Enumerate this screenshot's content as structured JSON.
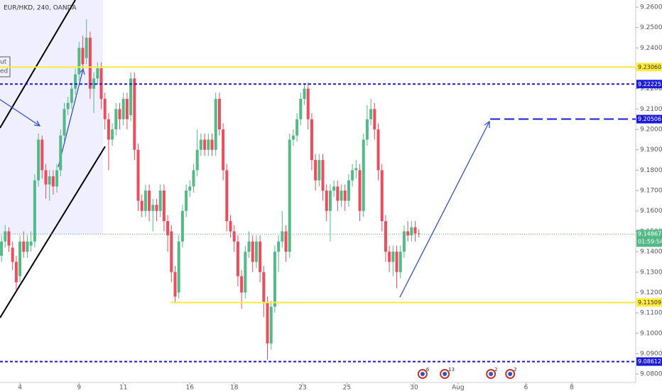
{
  "chart_data": {
    "type": "candlestick",
    "title": "EUR/HKD, 240, OANDA",
    "note_fragment": [
      "ut",
      "ed"
    ],
    "up_color": "#53b987",
    "down_color": "#eb4d5c",
    "ylim": [
      9.0769,
      9.2635
    ],
    "yticks": [
      {
        "value": 9.26,
        "label": "9.26000"
      },
      {
        "value": 9.25,
        "label": "9.25000"
      },
      {
        "value": 9.24,
        "label": "9.24000"
      },
      {
        "value": 9.23,
        "label": "9.23000"
      },
      {
        "value": 9.22,
        "label": "9.22000"
      },
      {
        "value": 9.21,
        "label": "9.21000"
      },
      {
        "value": 9.2,
        "label": "9.20000"
      },
      {
        "value": 9.19,
        "label": "9.19000"
      },
      {
        "value": 9.18,
        "label": "9.18000"
      },
      {
        "value": 9.17,
        "label": "9.17000"
      },
      {
        "value": 9.16,
        "label": "9.16000"
      },
      {
        "value": 9.15,
        "label": "9.15000"
      },
      {
        "value": 9.14,
        "label": "9.14000"
      },
      {
        "value": 9.13,
        "label": "9.13000"
      },
      {
        "value": 9.12,
        "label": "9.12000"
      },
      {
        "value": 9.11,
        "label": "9.11000"
      },
      {
        "value": 9.1,
        "label": "9.10000"
      },
      {
        "value": 9.09,
        "label": "9.09000"
      },
      {
        "value": 9.08,
        "label": "9.08000"
      }
    ],
    "xlim": [
      -0.4,
      171.7
    ],
    "xticks": [
      {
        "value": 5,
        "label": "4"
      },
      {
        "value": 21,
        "label": "9"
      },
      {
        "value": 33,
        "label": "11"
      },
      {
        "value": 51,
        "label": "16"
      },
      {
        "value": 63,
        "label": "18"
      },
      {
        "value": 81.5,
        "label": "23"
      },
      {
        "value": 93.5,
        "label": "25"
      },
      {
        "value": 111.7,
        "label": "30"
      },
      {
        "value": 123.6,
        "label": "Aug"
      },
      {
        "value": 142,
        "label": "6"
      },
      {
        "value": 154.4,
        "label": "8"
      }
    ],
    "ohlc": [
      [
        9.138,
        9.148,
        9.135,
        9.145
      ],
      [
        9.145,
        9.153,
        9.142,
        9.15
      ],
      [
        9.15,
        9.152,
        9.14,
        9.143
      ],
      [
        9.142,
        9.145,
        9.131,
        9.135
      ],
      [
        9.135,
        9.138,
        9.121,
        9.125
      ],
      [
        9.128,
        9.148,
        9.125,
        9.145
      ],
      [
        9.145,
        9.15,
        9.137,
        9.14
      ],
      [
        9.14,
        9.148,
        9.137,
        9.145
      ],
      [
        9.143,
        9.15,
        9.14,
        9.145
      ],
      [
        9.145,
        9.178,
        9.142,
        9.175
      ],
      [
        9.175,
        9.198,
        9.172,
        9.195
      ],
      [
        9.195,
        9.197,
        9.176,
        9.18
      ],
      [
        9.18,
        9.183,
        9.166,
        9.173
      ],
      [
        9.173,
        9.18,
        9.165,
        9.177
      ],
      [
        9.177,
        9.18,
        9.168,
        9.172
      ],
      [
        9.172,
        9.183,
        9.169,
        9.18
      ],
      [
        9.18,
        9.2,
        9.177,
        9.197
      ],
      [
        9.197,
        9.213,
        9.194,
        9.21
      ],
      [
        9.21,
        9.216,
        9.207,
        9.213
      ],
      [
        9.213,
        9.223,
        9.21,
        9.22
      ],
      [
        9.22,
        9.23,
        9.217,
        9.227
      ],
      [
        9.227,
        9.243,
        9.224,
        9.24
      ],
      [
        9.24,
        9.246,
        9.229,
        9.232
      ],
      [
        9.235,
        9.254,
        9.232,
        9.245
      ],
      [
        9.245,
        9.248,
        9.215,
        9.22
      ],
      [
        9.22,
        9.228,
        9.208,
        9.225
      ],
      [
        9.225,
        9.233,
        9.222,
        9.23
      ],
      [
        9.23,
        9.233,
        9.21,
        9.215
      ],
      [
        9.215,
        9.218,
        9.2,
        9.205
      ],
      [
        9.205,
        9.208,
        9.18,
        9.195
      ],
      [
        9.195,
        9.203,
        9.192,
        9.2
      ],
      [
        9.2,
        9.213,
        9.197,
        9.21
      ],
      [
        9.21,
        9.213,
        9.2,
        9.205
      ],
      [
        9.205,
        9.218,
        9.202,
        9.215
      ],
      [
        9.215,
        9.218,
        9.2,
        9.205
      ],
      [
        9.207,
        9.228,
        9.204,
        9.225
      ],
      [
        9.225,
        9.228,
        9.185,
        9.19
      ],
      [
        9.19,
        9.193,
        9.16,
        9.165
      ],
      [
        9.165,
        9.168,
        9.157,
        9.16
      ],
      [
        9.16,
        9.173,
        9.157,
        9.17
      ],
      [
        9.17,
        9.173,
        9.155,
        9.16
      ],
      [
        9.16,
        9.166,
        9.15,
        9.163
      ],
      [
        9.163,
        9.166,
        9.155,
        9.16
      ],
      [
        9.16,
        9.173,
        9.157,
        9.17
      ],
      [
        9.17,
        9.173,
        9.15,
        9.155
      ],
      [
        9.155,
        9.158,
        9.14,
        9.148
      ],
      [
        9.15,
        9.153,
        9.125,
        9.13
      ],
      [
        9.13,
        9.133,
        9.115,
        9.118
      ],
      [
        9.12,
        9.148,
        9.117,
        9.145
      ],
      [
        9.145,
        9.163,
        9.142,
        9.16
      ],
      [
        9.16,
        9.173,
        9.157,
        9.17
      ],
      [
        9.17,
        9.175,
        9.167,
        9.172
      ],
      [
        9.172,
        9.183,
        9.169,
        9.18
      ],
      [
        9.18,
        9.2,
        9.177,
        9.19
      ],
      [
        9.19,
        9.198,
        9.187,
        9.195
      ],
      [
        9.195,
        9.198,
        9.187,
        9.19
      ],
      [
        9.19,
        9.198,
        9.187,
        9.195
      ],
      [
        9.195,
        9.198,
        9.187,
        9.19
      ],
      [
        9.19,
        9.218,
        9.187,
        9.215
      ],
      [
        9.215,
        9.218,
        9.197,
        9.2
      ],
      [
        9.2,
        9.203,
        9.175,
        9.18
      ],
      [
        9.18,
        9.183,
        9.15,
        9.155
      ],
      [
        9.155,
        9.158,
        9.147,
        9.15
      ],
      [
        9.15,
        9.153,
        9.14,
        9.145
      ],
      [
        9.145,
        9.148,
        9.123,
        9.128
      ],
      [
        9.128,
        9.131,
        9.112,
        9.12
      ],
      [
        9.12,
        9.143,
        9.117,
        9.14
      ],
      [
        9.14,
        9.15,
        9.137,
        9.145
      ],
      [
        9.145,
        9.148,
        9.13,
        9.135
      ],
      [
        9.135,
        9.148,
        9.132,
        9.145
      ],
      [
        9.145,
        9.148,
        9.125,
        9.13
      ],
      [
        9.13,
        9.133,
        9.108,
        9.115
      ],
      [
        9.115,
        9.118,
        9.087,
        9.095
      ],
      [
        9.095,
        9.116,
        9.092,
        9.113
      ],
      [
        9.113,
        9.143,
        9.11,
        9.14
      ],
      [
        9.14,
        9.148,
        9.13,
        9.145
      ],
      [
        9.145,
        9.16,
        9.142,
        9.15
      ],
      [
        9.15,
        9.153,
        9.135,
        9.14
      ],
      [
        9.14,
        9.198,
        9.137,
        9.195
      ],
      [
        9.195,
        9.2,
        9.192,
        9.197
      ],
      [
        9.197,
        9.208,
        9.194,
        9.205
      ],
      [
        9.205,
        9.218,
        9.202,
        9.215
      ],
      [
        9.215,
        9.222,
        9.212,
        9.22
      ],
      [
        9.22,
        9.223,
        9.2,
        9.205
      ],
      [
        9.205,
        9.208,
        9.18,
        9.185
      ],
      [
        9.185,
        9.188,
        9.17,
        9.175
      ],
      [
        9.175,
        9.188,
        9.172,
        9.185
      ],
      [
        9.185,
        9.188,
        9.165,
        9.17
      ],
      [
        9.17,
        9.173,
        9.155,
        9.16
      ],
      [
        9.16,
        9.173,
        9.145,
        9.17
      ],
      [
        9.17,
        9.175,
        9.167,
        9.172
      ],
      [
        9.172,
        9.175,
        9.16,
        9.165
      ],
      [
        9.165,
        9.173,
        9.162,
        9.17
      ],
      [
        9.17,
        9.173,
        9.16,
        9.165
      ],
      [
        9.165,
        9.178,
        9.162,
        9.175
      ],
      [
        9.175,
        9.183,
        9.172,
        9.18
      ],
      [
        9.18,
        9.185,
        9.176,
        9.181
      ],
      [
        9.18,
        9.183,
        9.155,
        9.16
      ],
      [
        9.16,
        9.198,
        9.157,
        9.195
      ],
      [
        9.195,
        9.212,
        9.192,
        9.205
      ],
      [
        9.205,
        9.215,
        9.202,
        9.21
      ],
      [
        9.21,
        9.213,
        9.195,
        9.2
      ],
      [
        9.2,
        9.203,
        9.175,
        9.18
      ],
      [
        9.18,
        9.183,
        9.15,
        9.155
      ],
      [
        9.155,
        9.158,
        9.135,
        9.14
      ],
      [
        9.14,
        9.143,
        9.13,
        9.135
      ],
      [
        9.135,
        9.143,
        9.128,
        9.14
      ],
      [
        9.14,
        9.143,
        9.122,
        9.13
      ],
      [
        9.13,
        9.143,
        9.127,
        9.14
      ],
      [
        9.14,
        9.153,
        9.137,
        9.15
      ],
      [
        9.15,
        9.155,
        9.145,
        9.148
      ],
      [
        9.148,
        9.155,
        9.145,
        9.152
      ],
      [
        9.152,
        9.155,
        9.145,
        9.149
      ],
      [
        9.149,
        9.151,
        9.147,
        9.14867
      ]
    ],
    "hlines": [
      {
        "value": 9.2306,
        "label": "9.23060",
        "color": "#ffeb3b",
        "dashed": false,
        "x_start": -0.4
      },
      {
        "value": 9.22225,
        "label": "9.22225",
        "color": "#1a1ad8",
        "dashed": true,
        "x_start": -0.4
      },
      {
        "value": 9.20506,
        "label": "9.20506",
        "color": "#1a1ad8",
        "dashed": true,
        "x_start": 132.3
      },
      {
        "value": 9.11509,
        "label": "9.11509",
        "color": "#ffeb3b",
        "dashed": false,
        "x_start": 45.8
      },
      {
        "value": 9.08612,
        "label": "9.08612",
        "color": "#1a1ad8",
        "dashed": true,
        "x_start": -0.4
      }
    ],
    "last_price": {
      "value": 9.14867,
      "label": "9.14867",
      "color": "#53b987"
    },
    "countdown": "01:59:54",
    "events": [
      {
        "x": 114,
        "count": 6
      },
      {
        "x": 120,
        "count": 13
      },
      {
        "x": 132.5,
        "count": 2
      },
      {
        "x": 137.7,
        "count": 2
      }
    ]
  }
}
